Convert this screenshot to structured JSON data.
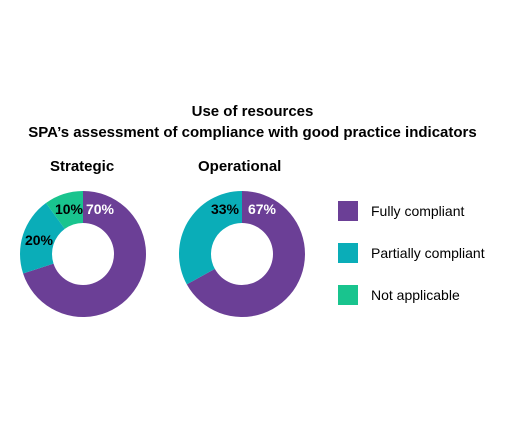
{
  "title": "Use of resources",
  "subtitle": "SPA’s assessment of compliance with good practice indicators",
  "legend": [
    {
      "label": "Fully compliant",
      "color": "#6b3f96"
    },
    {
      "label": "Partially compliant",
      "color": "#0aadb8"
    },
    {
      "label": "Not applicable",
      "color": "#19c48e"
    }
  ],
  "chart_data": [
    {
      "type": "pie",
      "title": "Strategic",
      "categories": [
        "Fully compliant",
        "Partially compliant",
        "Not applicable"
      ],
      "values": [
        70,
        20,
        10
      ],
      "labels": [
        "70%",
        "20%",
        "10%"
      ],
      "colors": [
        "#6b3f96",
        "#0aadb8",
        "#19c48e"
      ]
    },
    {
      "type": "pie",
      "title": "Operational",
      "categories": [
        "Fully compliant",
        "Partially compliant"
      ],
      "values": [
        67,
        33
      ],
      "labels": [
        "67%",
        "33%"
      ],
      "colors": [
        "#6b3f96",
        "#0aadb8"
      ]
    }
  ]
}
